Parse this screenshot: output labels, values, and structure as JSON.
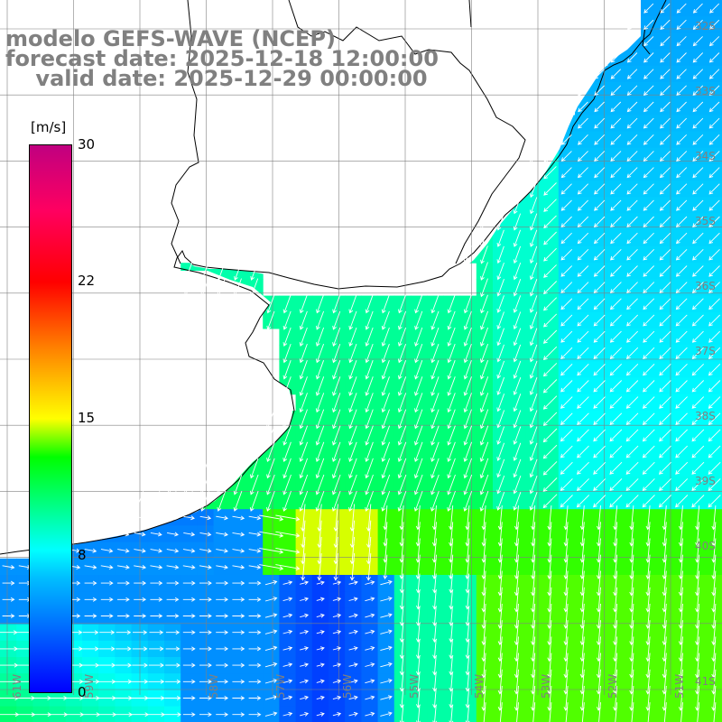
{
  "title": {
    "line1": "modelo GEFS-WAVE (NCEP)",
    "line2": "forecast date: 2025-12-18 12:00:00",
    "line3": "    valid date: 2025-12-29 00:00:00"
  },
  "colorbar": {
    "unit": "[m/s]",
    "ticks": [
      "30",
      "22",
      "15",
      "8",
      "0"
    ],
    "colors": [
      "#0000ff",
      "#00bfff",
      "#00ffff",
      "#00ff00",
      "#ffff00",
      "#ff8000",
      "#ff0000",
      "#c00080"
    ]
  },
  "lat_labels": [
    "32S",
    "33S",
    "34S",
    "35S",
    "36S",
    "37S",
    "38S",
    "39S",
    "40S",
    "41S"
  ],
  "lon_labels": [
    "61W",
    "59W",
    "58W",
    "57W",
    "56W",
    "55W",
    "54W",
    "53W",
    "52W",
    "51W"
  ]
}
